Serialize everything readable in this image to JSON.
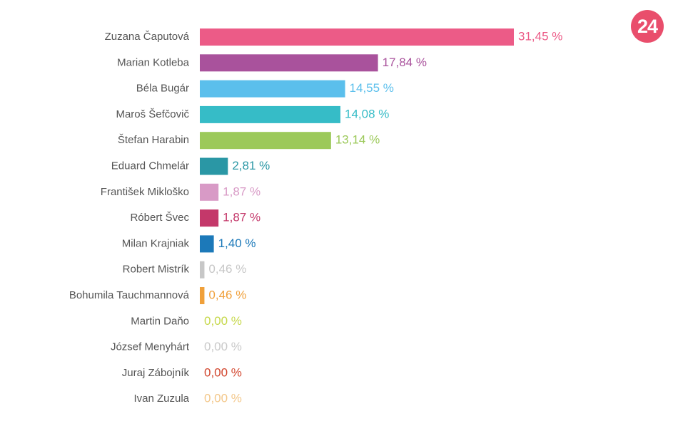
{
  "logo": {
    "text": "24",
    "color": "#e94e6c"
  },
  "chart_data": {
    "type": "bar",
    "orientation": "horizontal",
    "value_suffix": " %",
    "decimal_separator": ",",
    "xlim": [
      0,
      31.45
    ],
    "grid": false,
    "legend": "none",
    "categories": [
      "Zuzana Čaputová",
      "Marian Kotleba",
      "Béla Bugár",
      "Maroš Šefčovič",
      "Štefan Harabin",
      "Eduard Chmelár",
      "František Mikloško",
      "Róbert Švec",
      "Milan Krajniak",
      "Robert Mistrík",
      "Bohumila Tauchmannová",
      "Martin Daňo",
      "József Menyhárt",
      "Juraj Zábojník",
      "Ivan Zuzula"
    ],
    "values": [
      31.45,
      17.84,
      14.55,
      14.08,
      13.14,
      2.81,
      1.87,
      1.87,
      1.4,
      0.46,
      0.46,
      0.0,
      0.0,
      0.0,
      0.0
    ],
    "value_labels": [
      "31,45 %",
      "17,84 %",
      "14,55 %",
      "14,08 %",
      "13,14 %",
      "2,81 %",
      "1,87 %",
      "1,87 %",
      "1,40 %",
      "0,46 %",
      "0,46 %",
      "0,00 %",
      "0,00 %",
      "0,00 %",
      "0,00 %"
    ],
    "colors": [
      "#ec5b87",
      "#a9529c",
      "#5bbfec",
      "#36bcc7",
      "#9cc95a",
      "#2a97a5",
      "#d89ac6",
      "#c4386a",
      "#1c79b9",
      "#c7c7c7",
      "#f0a03a",
      "#c6d84a",
      "#c9c9c9",
      "#d2452d",
      "#f3c78a"
    ],
    "label_color": "#555555"
  }
}
